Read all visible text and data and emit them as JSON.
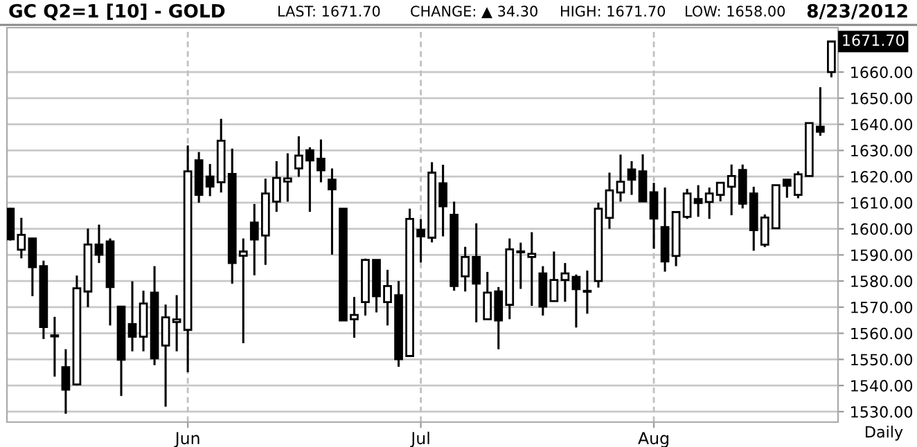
{
  "chart_data": {
    "type": "candlestick",
    "title": "GC Q2=1 [10] - GOLD",
    "annotations": [
      "LAST: 1671.70",
      "CHANGE: ▲ 34.30",
      "HIGH: 1671.70",
      "LOW: 1658.00",
      "8/23/2012",
      "Daily",
      "1671.70"
    ],
    "categories": [
      null,
      null,
      null,
      null,
      null,
      null,
      null,
      null,
      null,
      null,
      null,
      null,
      null,
      null,
      null,
      null,
      "Jun",
      null,
      null,
      null,
      null,
      null,
      null,
      null,
      null,
      null,
      null,
      null,
      null,
      null,
      null,
      null,
      null,
      null,
      null,
      null,
      null,
      "Jul",
      null,
      null,
      null,
      null,
      null,
      null,
      null,
      null,
      null,
      null,
      null,
      null,
      null,
      null,
      null,
      null,
      null,
      null,
      null,
      null,
      "Aug",
      null,
      null,
      null,
      null,
      null,
      null,
      null,
      null,
      null,
      null,
      null,
      null,
      null,
      null,
      null,
      null
    ],
    "ohlc": [
      [
        1607.7,
        1608,
        1595.5,
        1596
      ],
      [
        1592,
        1604.2,
        1588.7,
        1597.7
      ],
      [
        1596.3,
        1596.5,
        1574.2,
        1585.3
      ],
      [
        1585.7,
        1587.8,
        1557.8,
        1562.4
      ],
      [
        1559.2,
        1566.3,
        1543.4,
        1558.8
      ],
      [
        1547,
        1553.9,
        1529.2,
        1538.4
      ],
      [
        1540.4,
        1582.1,
        1540,
        1577.2
      ],
      [
        1576,
        1600.1,
        1570,
        1594
      ],
      [
        1594,
        1601.6,
        1586.9,
        1590.1
      ],
      [
        1595.2,
        1596.3,
        1563,
        1577.7
      ],
      [
        1570.2,
        1570.2,
        1536,
        1549.9
      ],
      [
        1563.5,
        1579.9,
        1553.1,
        1558.7
      ],
      [
        1558.7,
        1576.3,
        1553.1,
        1571.4
      ],
      [
        1575.6,
        1585.7,
        1547.8,
        1550.4
      ],
      [
        1555.3,
        1571,
        1531.9,
        1566.1
      ],
      [
        1564.3,
        1574.6,
        1553.1,
        1565.3
      ],
      [
        1561.3,
        1631.9,
        1545.1,
        1622
      ],
      [
        1626.2,
        1629.4,
        1610,
        1613
      ],
      [
        1620,
        1624.8,
        1612.5,
        1616.2
      ],
      [
        1617.8,
        1642.1,
        1613.9,
        1633.7
      ],
      [
        1621,
        1630.7,
        1579,
        1586.9
      ],
      [
        1589.7,
        1596.3,
        1556.2,
        1591.3
      ],
      [
        1602.4,
        1609.5,
        1582.2,
        1595.9
      ],
      [
        1597.4,
        1619.2,
        1586.2,
        1613.5
      ],
      [
        1610.4,
        1625.9,
        1606.5,
        1619.5
      ],
      [
        1618.1,
        1628.9,
        1610.4,
        1619.3
      ],
      [
        1623.1,
        1635.4,
        1619.9,
        1628
      ],
      [
        1630.1,
        1631.2,
        1606.5,
        1626.2
      ],
      [
        1626.8,
        1634.2,
        1617.8,
        1622.4
      ],
      [
        1618.8,
        1623.1,
        1590.1,
        1615.1
      ],
      [
        1607.7,
        1607.7,
        1564.9,
        1564.9
      ],
      [
        1565.4,
        1573.9,
        1558.3,
        1567
      ],
      [
        1571.9,
        1588.6,
        1566.8,
        1588.1
      ],
      [
        1588.1,
        1588.1,
        1568,
        1574.2
      ],
      [
        1571.9,
        1584.3,
        1563,
        1578.1
      ],
      [
        1574.6,
        1580,
        1547.2,
        1550.1
      ],
      [
        1551.3,
        1607.7,
        1551.3,
        1603.8
      ],
      [
        1599.6,
        1603.7,
        1587.1,
        1597.1
      ],
      [
        1596.6,
        1625.5,
        1594.8,
        1621.5
      ],
      [
        1617.4,
        1624.5,
        1597.1,
        1608.6
      ],
      [
        1605.4,
        1610.4,
        1576.3,
        1578.1
      ],
      [
        1581.8,
        1593.1,
        1576,
        1589.2
      ],
      [
        1589.2,
        1602.1,
        1564.2,
        1579
      ],
      [
        1565.4,
        1583.5,
        1565.4,
        1575.6
      ],
      [
        1576,
        1577.7,
        1553.9,
        1564.9
      ],
      [
        1570.9,
        1596.3,
        1565.4,
        1592.1
      ],
      [
        1591.3,
        1594.7,
        1577,
        1591
      ],
      [
        1589.2,
        1598.7,
        1570.5,
        1590.4
      ],
      [
        1582.9,
        1585.7,
        1566.8,
        1570.2
      ],
      [
        1572.3,
        1591.3,
        1572.3,
        1580.4
      ],
      [
        1580.4,
        1586.9,
        1572.1,
        1582.9
      ],
      [
        1581.6,
        1582.5,
        1562.2,
        1576.9
      ],
      [
        1576.1,
        1584,
        1567.5,
        1575.9
      ],
      [
        1580,
        1610,
        1577.5,
        1607.7
      ],
      [
        1604.2,
        1621.5,
        1600,
        1614.7
      ],
      [
        1613.9,
        1628.4,
        1610.4,
        1618
      ],
      [
        1622.7,
        1625.9,
        1613,
        1618.8
      ],
      [
        1622,
        1628.5,
        1610.5,
        1610.5
      ],
      [
        1614,
        1617.6,
        1592.4,
        1603.9
      ],
      [
        1600.7,
        1615.8,
        1583.6,
        1587.5
      ],
      [
        1589.6,
        1606.4,
        1585.7,
        1606.4
      ],
      [
        1604.6,
        1615.3,
        1603.8,
        1613.5
      ],
      [
        1611.4,
        1616.7,
        1604.6,
        1609.9
      ],
      [
        1610.3,
        1615.8,
        1603.8,
        1613.5
      ],
      [
        1613,
        1617.6,
        1610.5,
        1617.6
      ],
      [
        1616.1,
        1624.6,
        1605.2,
        1620.2
      ],
      [
        1622.5,
        1624.6,
        1607.8,
        1609.6
      ],
      [
        1613.5,
        1616.1,
        1591.6,
        1599.5
      ],
      [
        1593.9,
        1605.5,
        1593,
        1604.3
      ],
      [
        1600.2,
        1616.7,
        1600.2,
        1616.7
      ],
      [
        1618.8,
        1618.8,
        1611.9,
        1616.5
      ],
      [
        1613,
        1622,
        1611.7,
        1620.9
      ],
      [
        1620.2,
        1640.5,
        1620.2,
        1640.5
      ],
      [
        1639.1,
        1654.2,
        1635.6,
        1637.2
      ],
      [
        1660,
        1671.7,
        1658,
        1671.7
      ]
    ],
    "ylim": [
      1526,
      1677
    ],
    "yticks": [
      {
        "value": 1530,
        "label": "1530.00"
      },
      {
        "value": 1540,
        "label": "1540.00"
      },
      {
        "value": 1550,
        "label": "1550.00"
      },
      {
        "value": 1560,
        "label": "1560.00"
      },
      {
        "value": 1570,
        "label": "1570.00"
      },
      {
        "value": 1580,
        "label": "1580.00"
      },
      {
        "value": 1590,
        "label": "1590.00"
      },
      {
        "value": 1600,
        "label": "1600.00"
      },
      {
        "value": 1610,
        "label": "1610.00"
      },
      {
        "value": 1620,
        "label": "1620.00"
      },
      {
        "value": 1630,
        "label": "1630.00"
      },
      {
        "value": 1640,
        "label": "1640.00"
      },
      {
        "value": 1650,
        "label": "1650.00"
      },
      {
        "value": 1660,
        "label": "1660.00"
      }
    ],
    "grid": true
  }
}
